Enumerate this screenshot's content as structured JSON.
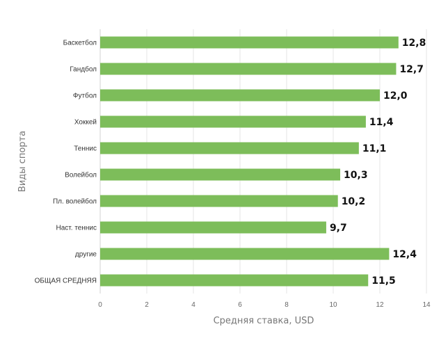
{
  "chart_data": {
    "type": "bar",
    "orientation": "horizontal",
    "categories": [
      "Баскетбол",
      "Гандбол",
      "Футбол",
      "Хоккей",
      "Теннис",
      "Волейбол",
      "Пл. волейбол",
      "Наст. теннис",
      "другие",
      "ОБЩАЯ СРЕДНЯЯ"
    ],
    "values": [
      12.8,
      12.7,
      12.0,
      11.4,
      11.1,
      10.3,
      10.2,
      9.7,
      12.4,
      11.5
    ],
    "value_labels": [
      "12,8",
      "12,7",
      "12,0",
      "11,4",
      "11,1",
      "10,3",
      "10,2",
      "9,7",
      "12,4",
      "11,5"
    ],
    "xlabel": "Средняя ставка, USD",
    "ylabel": "Виды спорта",
    "xlim": [
      0,
      14
    ],
    "xticks": [
      "0",
      "2",
      "4",
      "6",
      "8",
      "10",
      "12",
      "14"
    ],
    "grid": true,
    "bar_color": "#7dbd5a"
  }
}
